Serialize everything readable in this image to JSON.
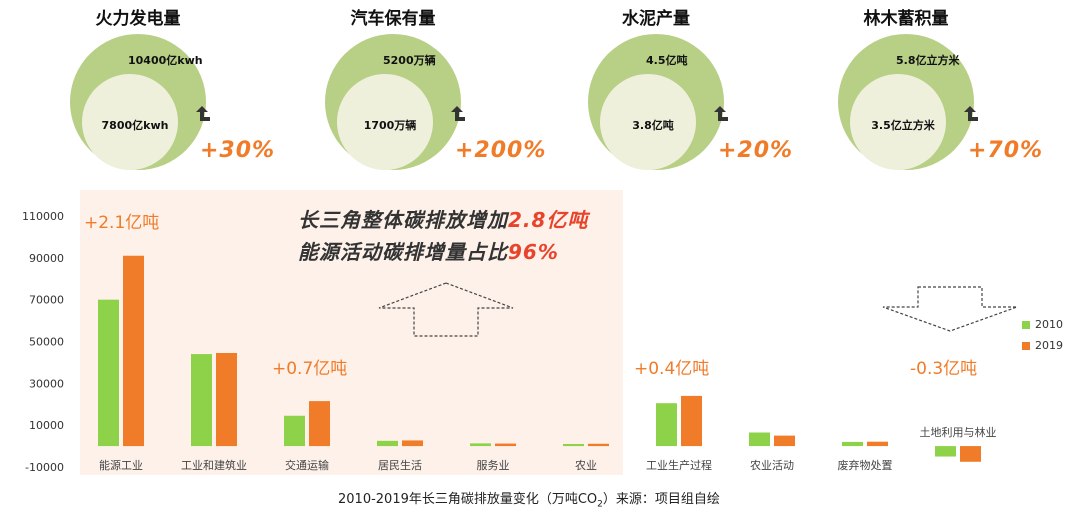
{
  "colors": {
    "green": "#8ed24a",
    "orange": "#f07b28",
    "ring": "#b8cf86",
    "inner": "#eef0dc",
    "highlight_bg": "#fdf1ea"
  },
  "circles": [
    {
      "title": "火力发电量",
      "outer": "10400亿kwh",
      "inner": "7800亿kwh",
      "pct": "+30%"
    },
    {
      "title": "汽车保有量",
      "outer": "5200万辆",
      "inner": "1700万辆",
      "pct": "+200%"
    },
    {
      "title": "水泥产量",
      "outer": "4.5亿吨",
      "inner": "3.8亿吨",
      "pct": "+20%"
    },
    {
      "title": "林木蓄积量",
      "outer": "5.8亿立方米",
      "inner": "3.5亿立方米",
      "pct": "+70%"
    }
  ],
  "headline": {
    "line1_prefix": "长三角整体碳排放增加",
    "line1_value": "2.8亿吨",
    "line2_prefix": "能源活动碳排增量占比",
    "line2_value": "96%"
  },
  "deltas": [
    "+2.1亿吨",
    "+0.7亿吨",
    "+0.4亿吨",
    "-0.3亿吨"
  ],
  "caption": {
    "main": "2010-2019年长三角碳排放量变化（万吨CO",
    "sub": "2",
    "tail": "）来源：项目组自绘"
  },
  "chart_data": {
    "type": "bar",
    "categories": [
      "能源工业",
      "工业和建筑业",
      "交通运输",
      "居民生活",
      "服务业",
      "农业",
      "工业生产过程",
      "农业活动",
      "废弃物处置",
      "土地利用与林业"
    ],
    "series": [
      {
        "name": "2010",
        "values": [
          70000,
          44000,
          14500,
          2500,
          1300,
          1000,
          20500,
          6500,
          2000,
          -5000
        ]
      },
      {
        "name": "2019",
        "values": [
          91000,
          44500,
          21500,
          2700,
          1200,
          1100,
          24000,
          5000,
          2100,
          -7500
        ]
      }
    ],
    "yticks": [
      "110000",
      "90000",
      "70000",
      "50000",
      "30000",
      "10000",
      "-10000"
    ],
    "ylim": [
      -10000,
      110000
    ],
    "legend_position": "right"
  }
}
